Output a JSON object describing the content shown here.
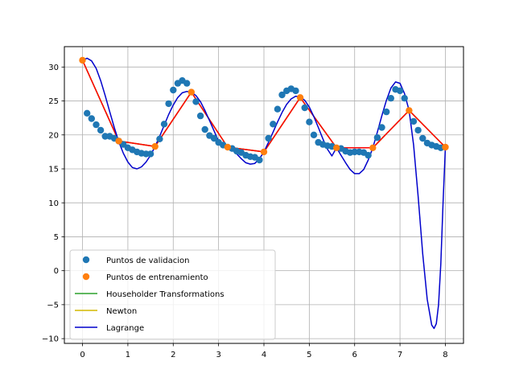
{
  "chart_data": {
    "type": "scatter",
    "title": "",
    "xlabel": "",
    "ylabel": "",
    "xlim": [
      -0.4,
      8.4
    ],
    "ylim": [
      -10.7,
      33.0
    ],
    "xticks": [
      0,
      1,
      2,
      3,
      4,
      5,
      6,
      7,
      8
    ],
    "yticks": [
      -10,
      -5,
      0,
      5,
      10,
      15,
      20,
      25,
      30
    ],
    "grid": true,
    "legend": {
      "position": "lower-left",
      "entries": [
        {
          "label": "Puntos de validacion",
          "kind": "marker",
          "color": "#1f77b4"
        },
        {
          "label": "Puntos de entrenamiento",
          "kind": "marker",
          "color": "#ff7f0e"
        },
        {
          "label": "Householder Transformations",
          "kind": "line",
          "color": "#2ca02c"
        },
        {
          "label": "Newton",
          "kind": "line",
          "color": "#d4b800"
        },
        {
          "label": "Lagrange",
          "kind": "line",
          "color": "#0000cc"
        }
      ]
    },
    "series": [
      {
        "name": "Puntos de validacion",
        "kind": "scatter",
        "color": "#1f77b4",
        "points": [
          [
            0.1,
            23.2
          ],
          [
            0.2,
            22.4
          ],
          [
            0.3,
            21.5
          ],
          [
            0.4,
            20.7
          ],
          [
            0.5,
            19.8
          ],
          [
            0.6,
            19.8
          ],
          [
            0.7,
            19.5
          ],
          [
            0.8,
            19.1
          ],
          [
            0.9,
            18.6
          ],
          [
            1.0,
            18.1
          ],
          [
            1.1,
            17.8
          ],
          [
            1.2,
            17.5
          ],
          [
            1.3,
            17.3
          ],
          [
            1.4,
            17.2
          ],
          [
            1.5,
            17.2
          ],
          [
            1.7,
            19.4
          ],
          [
            1.8,
            21.6
          ],
          [
            1.9,
            24.6
          ],
          [
            2.0,
            26.6
          ],
          [
            2.1,
            27.6
          ],
          [
            2.2,
            28.0
          ],
          [
            2.3,
            27.6
          ],
          [
            2.5,
            24.9
          ],
          [
            2.6,
            22.8
          ],
          [
            2.7,
            20.8
          ],
          [
            2.8,
            19.9
          ],
          [
            2.9,
            19.5
          ],
          [
            3.0,
            18.9
          ],
          [
            3.1,
            18.5
          ],
          [
            3.3,
            18.0
          ],
          [
            3.4,
            17.6
          ],
          [
            3.5,
            17.4
          ],
          [
            3.6,
            17.0
          ],
          [
            3.7,
            16.8
          ],
          [
            3.8,
            16.7
          ],
          [
            3.9,
            16.3
          ],
          [
            4.1,
            19.5
          ],
          [
            4.2,
            21.6
          ],
          [
            4.3,
            23.8
          ],
          [
            4.4,
            25.9
          ],
          [
            4.5,
            26.5
          ],
          [
            4.6,
            26.8
          ],
          [
            4.7,
            26.5
          ],
          [
            4.9,
            24.0
          ],
          [
            5.0,
            21.9
          ],
          [
            5.1,
            20.0
          ],
          [
            5.2,
            18.9
          ],
          [
            5.3,
            18.6
          ],
          [
            5.4,
            18.4
          ],
          [
            5.5,
            18.3
          ],
          [
            5.7,
            18.0
          ],
          [
            5.8,
            17.6
          ],
          [
            5.9,
            17.4
          ],
          [
            6.0,
            17.5
          ],
          [
            6.1,
            17.5
          ],
          [
            6.2,
            17.4
          ],
          [
            6.3,
            17.0
          ],
          [
            6.5,
            19.6
          ],
          [
            6.6,
            21.1
          ],
          [
            6.7,
            23.4
          ],
          [
            6.8,
            25.4
          ],
          [
            6.9,
            26.7
          ],
          [
            7.0,
            26.5
          ],
          [
            7.1,
            25.4
          ],
          [
            7.3,
            22.0
          ],
          [
            7.4,
            20.7
          ],
          [
            7.5,
            19.5
          ],
          [
            7.6,
            18.8
          ],
          [
            7.7,
            18.5
          ],
          [
            7.8,
            18.3
          ],
          [
            7.9,
            18.1
          ]
        ]
      },
      {
        "name": "Puntos de entrenamiento",
        "kind": "scatter",
        "color": "#ff7f0e",
        "points": [
          [
            0.0,
            31.0
          ],
          [
            0.8,
            19.1
          ],
          [
            1.6,
            18.3
          ],
          [
            2.4,
            26.3
          ],
          [
            3.2,
            18.2
          ],
          [
            4.0,
            17.5
          ],
          [
            4.8,
            25.5
          ],
          [
            5.6,
            18.1
          ],
          [
            6.4,
            18.1
          ],
          [
            7.2,
            23.6
          ],
          [
            8.0,
            18.2
          ]
        ]
      },
      {
        "name": "Householder Transformations",
        "kind": "line",
        "color": "#2ca02c",
        "points": [
          [
            0.0,
            31.0
          ],
          [
            0.8,
            19.1
          ],
          [
            1.6,
            18.3
          ],
          [
            2.4,
            26.3
          ],
          [
            3.2,
            18.2
          ],
          [
            4.0,
            17.5
          ],
          [
            4.8,
            25.5
          ],
          [
            5.6,
            18.1
          ],
          [
            6.4,
            18.1
          ],
          [
            7.2,
            23.6
          ],
          [
            8.0,
            18.2
          ]
        ]
      },
      {
        "name": "Newton",
        "kind": "line",
        "color": "#d4b800",
        "points": [
          [
            0.0,
            31.0
          ],
          [
            0.8,
            19.1
          ],
          [
            1.6,
            18.3
          ],
          [
            2.4,
            26.3
          ],
          [
            3.2,
            18.2
          ],
          [
            4.0,
            17.5
          ],
          [
            4.8,
            25.5
          ],
          [
            5.6,
            18.1
          ],
          [
            6.4,
            18.1
          ],
          [
            7.2,
            23.6
          ],
          [
            8.0,
            18.2
          ]
        ]
      },
      {
        "name": "Piecewise linear",
        "kind": "line",
        "color": "#ff0000",
        "points": [
          [
            0.0,
            31.0
          ],
          [
            0.8,
            19.1
          ],
          [
            1.6,
            18.3
          ],
          [
            2.4,
            26.3
          ],
          [
            3.2,
            18.2
          ],
          [
            4.0,
            17.5
          ],
          [
            4.8,
            25.5
          ],
          [
            5.6,
            18.1
          ],
          [
            6.4,
            18.1
          ],
          [
            7.2,
            23.6
          ],
          [
            8.0,
            18.2
          ]
        ]
      },
      {
        "name": "Lagrange",
        "kind": "line",
        "color": "#0000cc",
        "points": [
          [
            0.0,
            31.0
          ],
          [
            0.1,
            31.3
          ],
          [
            0.2,
            30.9
          ],
          [
            0.3,
            29.8
          ],
          [
            0.4,
            28.0
          ],
          [
            0.5,
            25.8
          ],
          [
            0.6,
            23.4
          ],
          [
            0.7,
            21.1
          ],
          [
            0.8,
            19.0
          ],
          [
            0.9,
            17.3
          ],
          [
            1.0,
            16.0
          ],
          [
            1.1,
            15.2
          ],
          [
            1.2,
            15.0
          ],
          [
            1.3,
            15.3
          ],
          [
            1.4,
            16.0
          ],
          [
            1.5,
            17.0
          ],
          [
            1.6,
            18.3
          ],
          [
            1.7,
            19.8
          ],
          [
            1.8,
            21.4
          ],
          [
            1.9,
            23.0
          ],
          [
            2.0,
            24.4
          ],
          [
            2.1,
            25.5
          ],
          [
            2.2,
            26.2
          ],
          [
            2.3,
            26.4
          ],
          [
            2.4,
            26.3
          ],
          [
            2.5,
            25.8
          ],
          [
            2.6,
            24.9
          ],
          [
            2.7,
            23.6
          ],
          [
            2.8,
            22.1
          ],
          [
            2.9,
            20.6
          ],
          [
            3.0,
            19.1
          ],
          [
            3.1,
            18.6
          ],
          [
            3.2,
            18.2
          ],
          [
            3.3,
            17.8
          ],
          [
            3.4,
            17.2
          ],
          [
            3.5,
            16.5
          ],
          [
            3.6,
            15.9
          ],
          [
            3.7,
            15.7
          ],
          [
            3.8,
            15.8
          ],
          [
            3.9,
            16.5
          ],
          [
            4.0,
            17.5
          ],
          [
            4.1,
            18.9
          ],
          [
            4.2,
            20.4
          ],
          [
            4.3,
            21.9
          ],
          [
            4.4,
            23.3
          ],
          [
            4.5,
            24.5
          ],
          [
            4.6,
            25.3
          ],
          [
            4.7,
            25.7
          ],
          [
            4.8,
            25.6
          ],
          [
            4.9,
            25.1
          ],
          [
            5.0,
            24.1
          ],
          [
            5.1,
            22.7
          ],
          [
            5.2,
            21.1
          ],
          [
            5.3,
            19.4
          ],
          [
            5.4,
            17.9
          ],
          [
            5.5,
            16.9
          ],
          [
            5.6,
            18.1
          ],
          [
            5.7,
            17.0
          ],
          [
            5.8,
            15.9
          ],
          [
            5.9,
            14.9
          ],
          [
            6.0,
            14.3
          ],
          [
            6.1,
            14.3
          ],
          [
            6.2,
            14.9
          ],
          [
            6.3,
            16.3
          ],
          [
            6.4,
            18.1
          ],
          [
            6.5,
            20.4
          ],
          [
            6.6,
            22.8
          ],
          [
            6.7,
            25.1
          ],
          [
            6.8,
            26.9
          ],
          [
            6.9,
            27.8
          ],
          [
            7.0,
            27.6
          ],
          [
            7.1,
            26.1
          ],
          [
            7.2,
            23.6
          ],
          [
            7.3,
            18.5
          ],
          [
            7.4,
            11.0
          ],
          [
            7.5,
            2.5
          ],
          [
            7.6,
            -4.2
          ],
          [
            7.7,
            -8.0
          ],
          [
            7.75,
            -8.5
          ],
          [
            7.8,
            -7.8
          ],
          [
            7.85,
            -5.0
          ],
          [
            7.9,
            1.0
          ],
          [
            7.95,
            10.0
          ],
          [
            8.0,
            18.2
          ]
        ]
      }
    ]
  }
}
